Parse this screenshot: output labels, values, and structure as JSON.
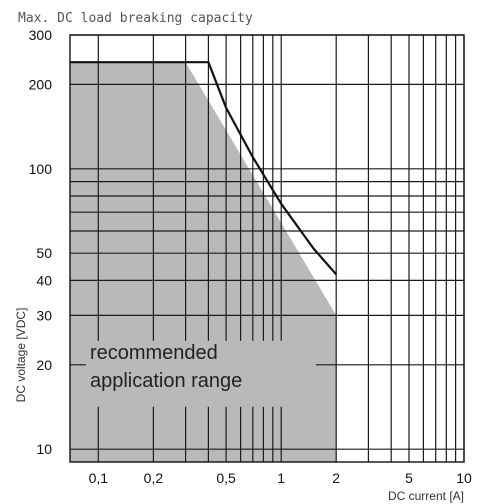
{
  "chart_data": {
    "type": "line",
    "title": "Max. DC load breaking capacity",
    "xlabel": "DC current [A]",
    "ylabel": "DC voltage [VDC]",
    "x_scale": "log",
    "y_scale": "log",
    "xlim": [
      0.07,
      10
    ],
    "ylim": [
      9,
      300
    ],
    "grid": true,
    "x_ticks": [
      {
        "value": 0.1,
        "label": "0,1"
      },
      {
        "value": 0.2,
        "label": "0,2"
      },
      {
        "value": 0.5,
        "label": "0,5"
      },
      {
        "value": 1,
        "label": "1"
      },
      {
        "value": 2,
        "label": "2"
      },
      {
        "value": 5,
        "label": "5"
      },
      {
        "value": 10,
        "label": "10"
      }
    ],
    "y_ticks": [
      {
        "value": 10,
        "label": "10"
      },
      {
        "value": 20,
        "label": "20"
      },
      {
        "value": 30,
        "label": "30"
      },
      {
        "value": 40,
        "label": "40"
      },
      {
        "value": 50,
        "label": "50"
      },
      {
        "value": 100,
        "label": "100"
      },
      {
        "value": 200,
        "label": "200"
      },
      {
        "value": 300,
        "label": "300"
      }
    ],
    "x_grid": [
      0.1,
      0.2,
      0.3,
      0.4,
      0.5,
      0.6,
      0.7,
      0.8,
      0.9,
      1,
      2,
      3,
      4,
      5,
      6,
      7,
      8,
      9,
      10
    ],
    "y_grid": [
      10,
      20,
      30,
      40,
      50,
      60,
      70,
      80,
      90,
      100,
      200,
      300
    ],
    "series": [
      {
        "values": [
          {
            "x": 0.07,
            "y": 240
          },
          {
            "x": 0.4,
            "y": 240
          },
          {
            "x": 0.5,
            "y": 165
          },
          {
            "x": 0.7,
            "y": 110
          },
          {
            "x": 1,
            "y": 75
          },
          {
            "x": 1.5,
            "y": 52
          },
          {
            "x": 2,
            "y": 42
          }
        ],
        "color": "#111111"
      }
    ],
    "area": {
      "color": "#b9b9bc",
      "points": [
        {
          "x": 0.07,
          "y": 9
        },
        {
          "x": 0.07,
          "y": 240
        },
        {
          "x": 0.3,
          "y": 240
        },
        {
          "x": 2,
          "y": 30
        },
        {
          "x": 2,
          "y": 9
        }
      ]
    },
    "annotation": {
      "line1": "recommended",
      "line2": "application range",
      "x": 0.09,
      "y": 21
    }
  }
}
